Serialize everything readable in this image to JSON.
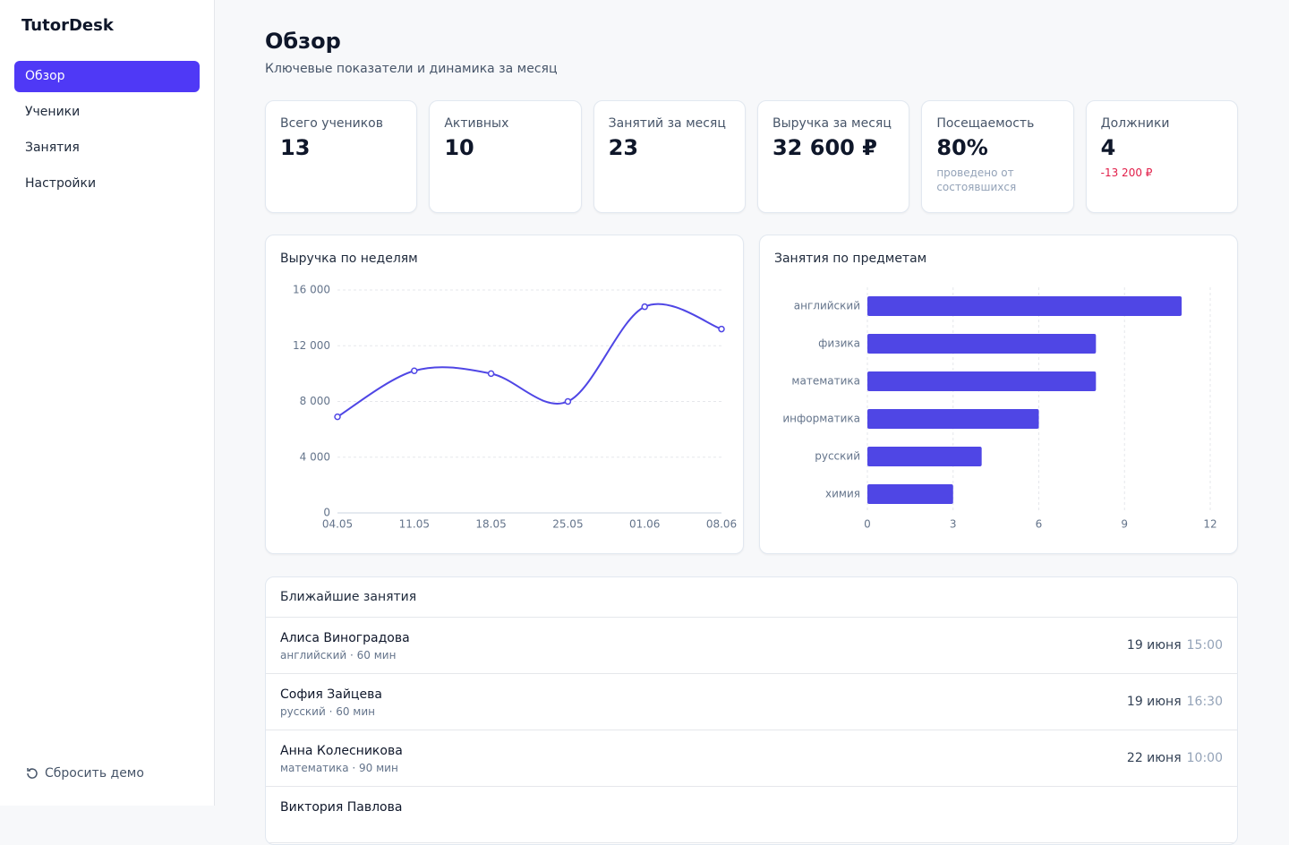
{
  "sidebar": {
    "brand": "TutorDesk",
    "nav": [
      "Обзор",
      "Ученики",
      "Занятия",
      "Настройки"
    ],
    "reset": "Сбросить демо"
  },
  "header": {
    "title": "Обзор",
    "subtitle": "Ключевые показатели и динамика за месяц"
  },
  "kpis": [
    {
      "label": "Всего учеников",
      "value": "13"
    },
    {
      "label": "Активных",
      "value": "10"
    },
    {
      "label": "Занятий за месяц",
      "value": "23"
    },
    {
      "label": "Выручка за месяц",
      "value": "32 600 ₽"
    },
    {
      "label": "Посещаемость",
      "value": "80%",
      "note": "проведено от состоявшихся"
    },
    {
      "label": "Должники",
      "value": "4",
      "note": "-13 200 ₽"
    }
  ],
  "chart_data": [
    {
      "type": "line",
      "title": "Выручка по неделям",
      "categories": [
        "04.05",
        "11.05",
        "18.05",
        "25.05",
        "01.06",
        "08.06"
      ],
      "values": [
        6900,
        10200,
        10000,
        8000,
        14800,
        13200
      ],
      "color": "#4f46e5",
      "ylim": [
        0,
        16000
      ],
      "yticks": [
        {
          "value": 0,
          "label": "0"
        },
        {
          "value": 4000,
          "label": "4 000"
        },
        {
          "value": 8000,
          "label": "8 000"
        },
        {
          "value": 12000,
          "label": "12 000"
        },
        {
          "value": 16000,
          "label": "16 000"
        }
      ],
      "grid": true
    },
    {
      "type": "bar",
      "orientation": "horizontal",
      "title": "Занятия по предметам",
      "categories": [
        "английский",
        "физика",
        "математика",
        "информатика",
        "русский",
        "химия"
      ],
      "values": [
        11,
        8,
        8,
        6,
        4,
        3
      ],
      "color": "#4f46e5",
      "xlim": [
        0,
        12
      ],
      "xticks": [
        0,
        3,
        6,
        9,
        12
      ],
      "grid": true
    }
  ],
  "upcoming": {
    "title": "Ближайшие занятия",
    "rows": [
      {
        "name": "Алиса Виноградова",
        "meta": "английский · 60 мин",
        "date": "19 июня",
        "time": "15:00"
      },
      {
        "name": "София Зайцева",
        "meta": "русский · 60 мин",
        "date": "19 июня",
        "time": "16:30"
      },
      {
        "name": "Анна Колесникова",
        "meta": "математика · 90 мин",
        "date": "22 июня",
        "time": "10:00"
      },
      {
        "name": "Виктория Павлова"
      }
    ]
  }
}
